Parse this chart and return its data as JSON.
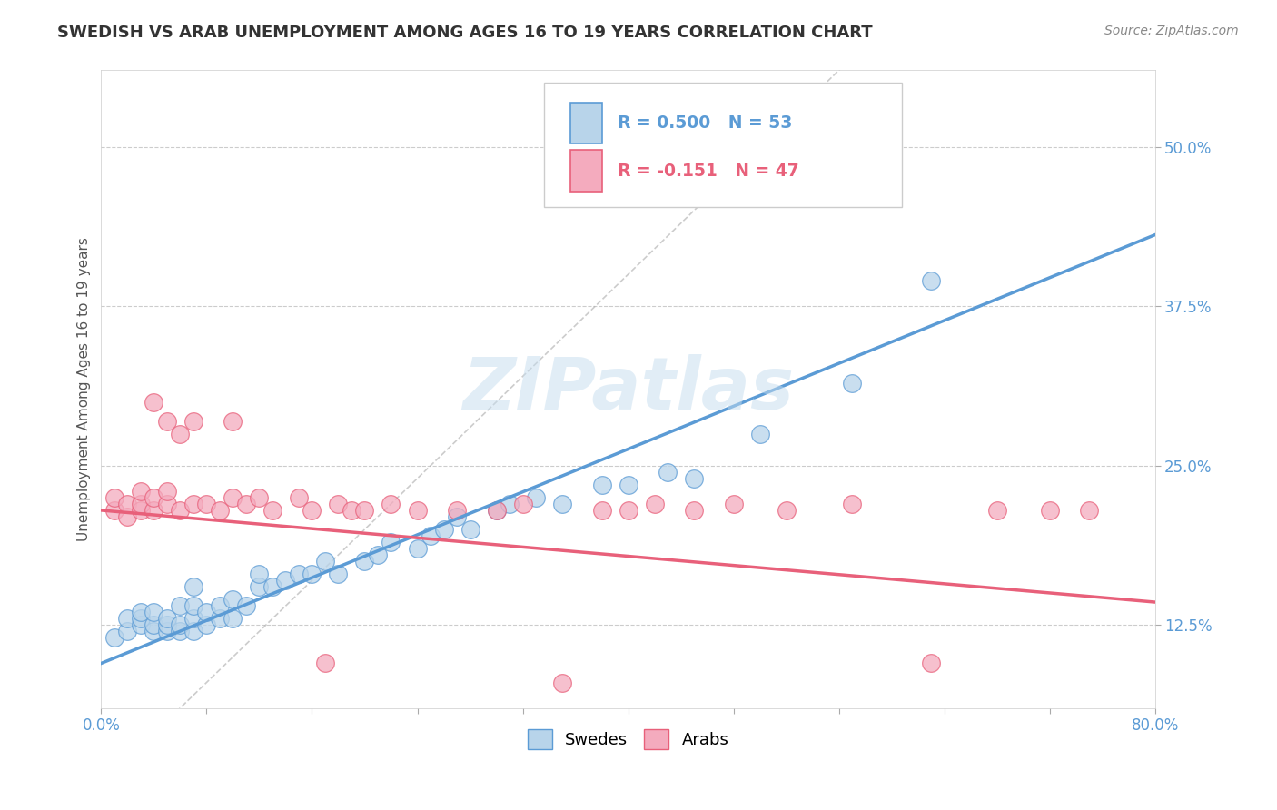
{
  "title": "SWEDISH VS ARAB UNEMPLOYMENT AMONG AGES 16 TO 19 YEARS CORRELATION CHART",
  "source": "Source: ZipAtlas.com",
  "ylabel": "Unemployment Among Ages 16 to 19 years",
  "xlim": [
    0.0,
    0.8
  ],
  "ylim": [
    0.06,
    0.56
  ],
  "yticks_right": [
    0.125,
    0.25,
    0.375,
    0.5
  ],
  "ytick_labels_right": [
    "12.5%",
    "25.0%",
    "37.5%",
    "50.0%"
  ],
  "swedes_color": "#b8d4ea",
  "arabs_color": "#f4abbe",
  "swede_line_color": "#5b9bd5",
  "arab_line_color": "#e8607a",
  "diag_line_color": "#aaaaaa",
  "R_swedes": 0.5,
  "N_swedes": 53,
  "R_arabs": -0.151,
  "N_arabs": 47,
  "legend_swedes_label": "Swedes",
  "legend_arabs_label": "Arabs",
  "watermark": "ZIPatlas",
  "swede_intercept": 0.095,
  "swede_slope": 0.42,
  "arab_intercept": 0.215,
  "arab_slope": -0.09,
  "swedes_x": [
    0.01,
    0.02,
    0.02,
    0.03,
    0.03,
    0.03,
    0.04,
    0.04,
    0.04,
    0.05,
    0.05,
    0.05,
    0.06,
    0.06,
    0.06,
    0.07,
    0.07,
    0.07,
    0.07,
    0.08,
    0.08,
    0.09,
    0.09,
    0.1,
    0.1,
    0.11,
    0.12,
    0.12,
    0.13,
    0.14,
    0.15,
    0.16,
    0.17,
    0.18,
    0.2,
    0.21,
    0.22,
    0.24,
    0.25,
    0.26,
    0.27,
    0.28,
    0.3,
    0.31,
    0.33,
    0.35,
    0.38,
    0.4,
    0.43,
    0.45,
    0.5,
    0.57,
    0.63
  ],
  "swedes_y": [
    0.115,
    0.12,
    0.13,
    0.125,
    0.13,
    0.135,
    0.12,
    0.125,
    0.135,
    0.12,
    0.125,
    0.13,
    0.12,
    0.125,
    0.14,
    0.12,
    0.13,
    0.14,
    0.155,
    0.125,
    0.135,
    0.13,
    0.14,
    0.13,
    0.145,
    0.14,
    0.155,
    0.165,
    0.155,
    0.16,
    0.165,
    0.165,
    0.175,
    0.165,
    0.175,
    0.18,
    0.19,
    0.185,
    0.195,
    0.2,
    0.21,
    0.2,
    0.215,
    0.22,
    0.225,
    0.22,
    0.235,
    0.235,
    0.245,
    0.24,
    0.275,
    0.315,
    0.395
  ],
  "arabs_x": [
    0.01,
    0.01,
    0.02,
    0.02,
    0.03,
    0.03,
    0.03,
    0.04,
    0.04,
    0.04,
    0.05,
    0.05,
    0.05,
    0.06,
    0.06,
    0.07,
    0.07,
    0.08,
    0.09,
    0.1,
    0.1,
    0.11,
    0.12,
    0.13,
    0.15,
    0.16,
    0.17,
    0.18,
    0.19,
    0.2,
    0.22,
    0.24,
    0.27,
    0.3,
    0.32,
    0.35,
    0.38,
    0.4,
    0.42,
    0.45,
    0.48,
    0.52,
    0.57,
    0.63,
    0.68,
    0.72,
    0.75
  ],
  "arabs_y": [
    0.215,
    0.225,
    0.21,
    0.22,
    0.215,
    0.22,
    0.23,
    0.215,
    0.225,
    0.3,
    0.22,
    0.23,
    0.285,
    0.215,
    0.275,
    0.22,
    0.285,
    0.22,
    0.215,
    0.225,
    0.285,
    0.22,
    0.225,
    0.215,
    0.225,
    0.215,
    0.095,
    0.22,
    0.215,
    0.215,
    0.22,
    0.215,
    0.215,
    0.215,
    0.22,
    0.08,
    0.215,
    0.215,
    0.22,
    0.215,
    0.22,
    0.215,
    0.22,
    0.095,
    0.215,
    0.215,
    0.215
  ]
}
